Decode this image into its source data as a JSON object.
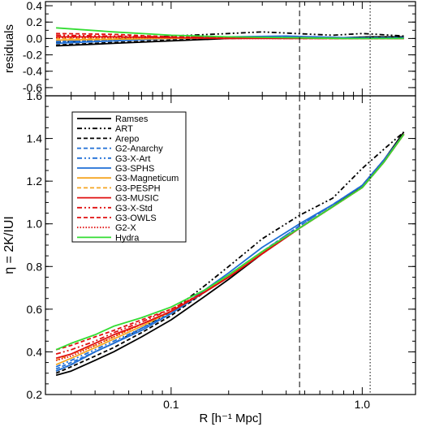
{
  "chart_data": [
    {
      "type": "line",
      "panel": "residuals",
      "ylabel": "residuals",
      "xlabel": "",
      "xscale": "log",
      "xlim": [
        0.022,
        1.9
      ],
      "ylim": [
        -0.7,
        0.45
      ],
      "yticks": [
        0.4,
        0.2,
        0.0,
        -0.2,
        -0.4,
        -0.6
      ],
      "ytick_labels": [
        "0.4",
        "0.2",
        "0.0",
        "-0.2",
        "-0.4",
        "-0.6"
      ],
      "vlines": [
        0.47,
        1.1
      ],
      "series": [
        {
          "name": "Ramses",
          "x": [
            0.025,
            0.05,
            0.1,
            0.2,
            0.4,
            0.8,
            1.1,
            1.65
          ],
          "values": [
            -0.09,
            -0.06,
            -0.03,
            0.0,
            0.01,
            0.01,
            0.02,
            0.02
          ]
        },
        {
          "name": "ART",
          "x": [
            0.025,
            0.05,
            0.1,
            0.2,
            0.3,
            0.45,
            0.7,
            1.0,
            1.2,
            1.65
          ],
          "values": [
            -0.05,
            -0.01,
            0.03,
            0.06,
            0.08,
            0.06,
            0.04,
            0.06,
            0.05,
            0.03
          ]
        },
        {
          "name": "Arepo",
          "x": [
            0.025,
            0.05,
            0.1,
            0.2,
            0.4,
            0.8,
            1.65
          ],
          "values": [
            -0.08,
            -0.05,
            -0.02,
            0.0,
            0.01,
            0.01,
            0.01
          ]
        },
        {
          "name": "G2-Anarchy",
          "x": [
            0.025,
            0.05,
            0.1,
            0.2,
            0.4,
            0.8,
            1.65
          ],
          "values": [
            -0.04,
            -0.02,
            0.0,
            0.01,
            0.02,
            0.01,
            0.01
          ]
        },
        {
          "name": "G3-X-Art",
          "x": [
            0.025,
            0.05,
            0.1,
            0.2,
            0.4,
            0.8,
            1.65
          ],
          "values": [
            -0.03,
            -0.02,
            0.0,
            0.01,
            0.02,
            0.01,
            0.0
          ]
        },
        {
          "name": "G3-SPHS",
          "x": [
            0.025,
            0.05,
            0.1,
            0.2,
            0.4,
            0.8,
            1.65
          ],
          "values": [
            -0.06,
            -0.03,
            0.0,
            0.02,
            0.03,
            0.01,
            0.0
          ]
        },
        {
          "name": "G3-Magneticum",
          "x": [
            0.025,
            0.05,
            0.1,
            0.2,
            0.4,
            0.8,
            1.65
          ],
          "values": [
            -0.02,
            -0.01,
            0.0,
            0.01,
            0.01,
            0.0,
            0.0
          ]
        },
        {
          "name": "G3-PESPH",
          "x": [
            0.025,
            0.05,
            0.1,
            0.2,
            0.4,
            0.8,
            1.65
          ],
          "values": [
            0.0,
            0.0,
            0.01,
            0.01,
            0.01,
            0.0,
            0.0
          ]
        },
        {
          "name": "G3-MUSIC",
          "x": [
            0.025,
            0.05,
            0.1,
            0.2,
            0.4,
            0.8,
            1.65
          ],
          "values": [
            0.02,
            0.02,
            0.01,
            0.0,
            0.0,
            0.0,
            0.0
          ]
        },
        {
          "name": "G3-X-Std",
          "x": [
            0.025,
            0.05,
            0.1,
            0.2,
            0.4,
            0.8,
            1.65
          ],
          "values": [
            0.04,
            0.03,
            0.02,
            0.01,
            0.0,
            0.0,
            0.0
          ]
        },
        {
          "name": "G3-OWLS",
          "x": [
            0.025,
            0.05,
            0.1,
            0.2,
            0.4,
            0.8,
            1.65
          ],
          "values": [
            0.06,
            0.05,
            0.02,
            0.01,
            0.0,
            0.0,
            0.0
          ]
        },
        {
          "name": "G2-X",
          "x": [
            0.025,
            0.05,
            0.1,
            0.2,
            0.4,
            0.8,
            1.65
          ],
          "values": [
            0.01,
            0.01,
            0.01,
            0.0,
            0.0,
            0.0,
            0.0
          ]
        },
        {
          "name": "Hydra",
          "x": [
            0.025,
            0.05,
            0.1,
            0.2,
            0.4,
            0.8,
            1.65
          ],
          "values": [
            0.13,
            0.08,
            0.04,
            0.02,
            0.01,
            0.0,
            0.0
          ]
        }
      ]
    },
    {
      "type": "line",
      "panel": "main",
      "ylabel": "η = 2K/IUI",
      "xlabel": "R [h⁻¹ Mpc]",
      "xscale": "log",
      "xlim": [
        0.022,
        1.9
      ],
      "ylim": [
        0.2,
        1.6
      ],
      "yticks": [
        0.2,
        0.4,
        0.6,
        0.8,
        1.0,
        1.2,
        1.4,
        1.6
      ],
      "ytick_labels": [
        "0.2",
        "0.4",
        "0.6",
        "0.8",
        "1.0",
        "1.2",
        "1.4",
        "1.6"
      ],
      "xticks": [
        0.1,
        1.0
      ],
      "xtick_labels": [
        "0.1",
        "1.0"
      ],
      "vlines": [
        0.47,
        1.1
      ],
      "legend_position": "top-left",
      "series": [
        {
          "name": "Ramses",
          "color": "#000000",
          "dash": "solid",
          "x": [
            0.025,
            0.03,
            0.04,
            0.05,
            0.07,
            0.1,
            0.15,
            0.2,
            0.3,
            0.47,
            0.7,
            1.0,
            1.3,
            1.65
          ],
          "values": [
            0.29,
            0.31,
            0.36,
            0.4,
            0.47,
            0.55,
            0.66,
            0.74,
            0.86,
            0.98,
            1.08,
            1.18,
            1.3,
            1.43
          ]
        },
        {
          "name": "ART",
          "color": "#000000",
          "dash": "6,3,2,3,2,3",
          "x": [
            0.025,
            0.03,
            0.04,
            0.05,
            0.07,
            0.1,
            0.15,
            0.2,
            0.3,
            0.47,
            0.7,
            1.0,
            1.3,
            1.65
          ],
          "values": [
            0.31,
            0.34,
            0.4,
            0.44,
            0.51,
            0.59,
            0.71,
            0.8,
            0.93,
            1.04,
            1.12,
            1.26,
            1.35,
            1.43
          ]
        },
        {
          "name": "Arepo",
          "color": "#000000",
          "dash": "5,3",
          "x": [
            0.025,
            0.03,
            0.04,
            0.05,
            0.07,
            0.1,
            0.15,
            0.2,
            0.3,
            0.47,
            0.7,
            1.0,
            1.3,
            1.65
          ],
          "values": [
            0.3,
            0.33,
            0.38,
            0.42,
            0.49,
            0.57,
            0.68,
            0.75,
            0.86,
            0.98,
            1.08,
            1.18,
            1.3,
            1.42
          ]
        },
        {
          "name": "G2-Anarchy",
          "color": "#1f6fd6",
          "dash": "5,3",
          "x": [
            0.025,
            0.03,
            0.04,
            0.05,
            0.07,
            0.1,
            0.15,
            0.2,
            0.3,
            0.47,
            0.7,
            1.0,
            1.3,
            1.65
          ],
          "values": [
            0.32,
            0.35,
            0.4,
            0.44,
            0.51,
            0.58,
            0.68,
            0.76,
            0.87,
            0.99,
            1.09,
            1.18,
            1.3,
            1.42
          ]
        },
        {
          "name": "G3-X-Art",
          "color": "#1f6fd6",
          "dash": "6,3,2,3,2,3",
          "x": [
            0.025,
            0.03,
            0.04,
            0.05,
            0.07,
            0.1,
            0.15,
            0.2,
            0.3,
            0.47,
            0.7,
            1.0,
            1.3,
            1.65
          ],
          "values": [
            0.33,
            0.36,
            0.41,
            0.45,
            0.51,
            0.58,
            0.68,
            0.76,
            0.87,
            0.99,
            1.09,
            1.18,
            1.3,
            1.42
          ]
        },
        {
          "name": "G3-SPHS",
          "color": "#1f6fd6",
          "dash": "solid",
          "x": [
            0.025,
            0.03,
            0.04,
            0.05,
            0.07,
            0.1,
            0.15,
            0.2,
            0.3,
            0.47,
            0.7,
            1.0,
            1.3,
            1.65
          ],
          "values": [
            0.31,
            0.34,
            0.4,
            0.44,
            0.5,
            0.58,
            0.69,
            0.77,
            0.89,
            1.0,
            1.09,
            1.18,
            1.3,
            1.42
          ]
        },
        {
          "name": "G3-Magneticum",
          "color": "#f5a623",
          "dash": "solid",
          "x": [
            0.025,
            0.03,
            0.04,
            0.05,
            0.07,
            0.1,
            0.15,
            0.2,
            0.3,
            0.47,
            0.7,
            1.0,
            1.3,
            1.65
          ],
          "values": [
            0.34,
            0.37,
            0.42,
            0.46,
            0.52,
            0.59,
            0.68,
            0.76,
            0.87,
            0.98,
            1.08,
            1.17,
            1.29,
            1.42
          ]
        },
        {
          "name": "G3-PESPH",
          "color": "#f5a623",
          "dash": "5,3",
          "x": [
            0.025,
            0.03,
            0.04,
            0.05,
            0.07,
            0.1,
            0.15,
            0.2,
            0.3,
            0.47,
            0.7,
            1.0,
            1.3,
            1.65
          ],
          "values": [
            0.36,
            0.39,
            0.43,
            0.47,
            0.53,
            0.59,
            0.68,
            0.75,
            0.87,
            0.98,
            1.08,
            1.17,
            1.29,
            1.42
          ]
        },
        {
          "name": "G3-MUSIC",
          "color": "#e01010",
          "dash": "solid",
          "x": [
            0.025,
            0.03,
            0.04,
            0.05,
            0.07,
            0.1,
            0.15,
            0.2,
            0.3,
            0.47,
            0.7,
            1.0,
            1.3,
            1.65
          ],
          "values": [
            0.37,
            0.39,
            0.44,
            0.48,
            0.53,
            0.59,
            0.68,
            0.75,
            0.86,
            0.98,
            1.08,
            1.17,
            1.29,
            1.42
          ]
        },
        {
          "name": "G3-X-Std",
          "color": "#e01010",
          "dash": "6,3,2,3,2,3",
          "x": [
            0.025,
            0.03,
            0.04,
            0.05,
            0.07,
            0.1,
            0.15,
            0.2,
            0.3,
            0.47,
            0.7,
            1.0,
            1.3,
            1.65
          ],
          "values": [
            0.39,
            0.41,
            0.45,
            0.49,
            0.54,
            0.6,
            0.68,
            0.75,
            0.86,
            0.98,
            1.08,
            1.17,
            1.29,
            1.42
          ]
        },
        {
          "name": "G3-OWLS",
          "color": "#e01010",
          "dash": "5,3",
          "x": [
            0.025,
            0.03,
            0.04,
            0.05,
            0.07,
            0.1,
            0.15,
            0.2,
            0.3,
            0.47,
            0.7,
            1.0,
            1.3,
            1.65
          ],
          "values": [
            0.41,
            0.43,
            0.47,
            0.5,
            0.55,
            0.6,
            0.68,
            0.75,
            0.86,
            0.98,
            1.08,
            1.17,
            1.29,
            1.42
          ]
        },
        {
          "name": "G2-X",
          "color": "#e01010",
          "dash": "1.5,2",
          "x": [
            0.025,
            0.03,
            0.04,
            0.05,
            0.07,
            0.1,
            0.15,
            0.2,
            0.3,
            0.47,
            0.7,
            1.0,
            1.3,
            1.65
          ],
          "values": [
            0.36,
            0.38,
            0.43,
            0.47,
            0.53,
            0.59,
            0.68,
            0.75,
            0.86,
            0.98,
            1.08,
            1.17,
            1.29,
            1.42
          ]
        },
        {
          "name": "Hydra",
          "color": "#33dd33",
          "dash": "solid",
          "x": [
            0.025,
            0.03,
            0.04,
            0.05,
            0.07,
            0.1,
            0.15,
            0.2,
            0.3,
            0.47,
            0.7,
            1.0,
            1.3,
            1.65
          ],
          "values": [
            0.41,
            0.44,
            0.48,
            0.52,
            0.56,
            0.61,
            0.69,
            0.76,
            0.87,
            0.98,
            1.08,
            1.17,
            1.29,
            1.42
          ]
        }
      ]
    }
  ]
}
